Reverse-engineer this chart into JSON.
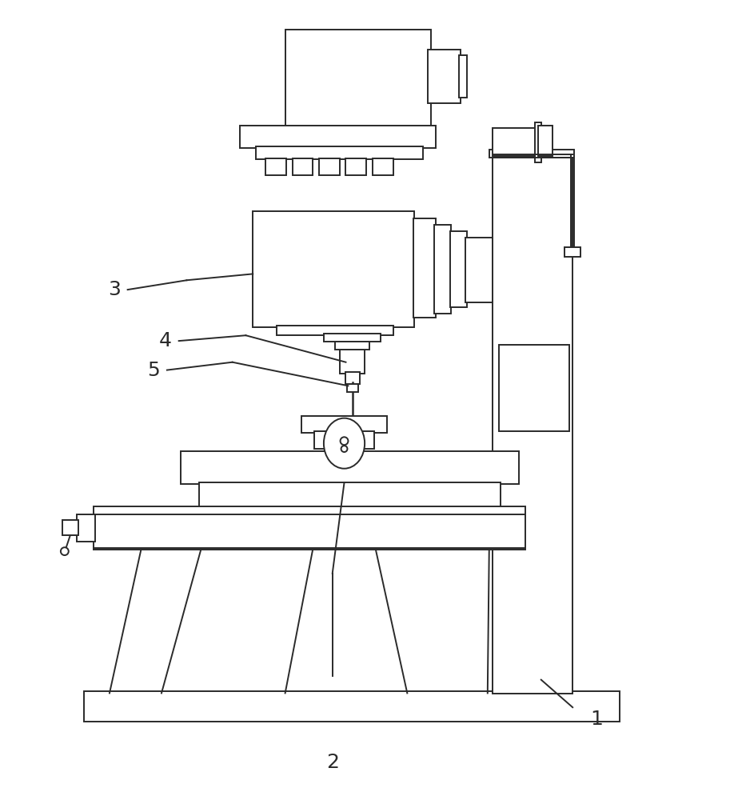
{
  "bg_color": "#ffffff",
  "line_color": "#2a2a2a",
  "lw": 1.4,
  "fig_width": 9.29,
  "fig_height": 10.0
}
